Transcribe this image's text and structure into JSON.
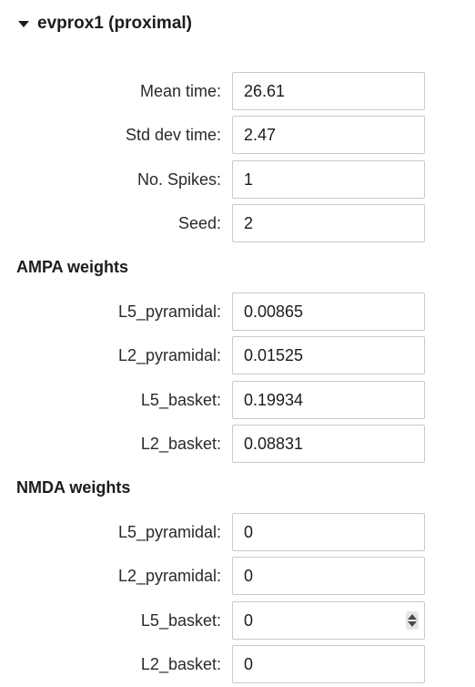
{
  "section": {
    "title": "evprox1 (proximal)",
    "expanded": true,
    "icon": "caret-down-icon"
  },
  "timing": [
    {
      "label": "Mean time:",
      "value": "26.61"
    },
    {
      "label": "Std dev time:",
      "value": "2.47"
    },
    {
      "label": "No. Spikes:",
      "value": "1"
    },
    {
      "label": "Seed:",
      "value": "2"
    }
  ],
  "ampa": {
    "heading": "AMPA weights",
    "fields": [
      {
        "label": "L5_pyramidal:",
        "value": "0.00865"
      },
      {
        "label": "L2_pyramidal:",
        "value": "0.01525"
      },
      {
        "label": "L5_basket:",
        "value": "0.19934"
      },
      {
        "label": "L2_basket:",
        "value": "0.08831"
      }
    ]
  },
  "nmda": {
    "heading": "NMDA weights",
    "fields": [
      {
        "label": "L5_pyramidal:",
        "value": "0"
      },
      {
        "label": "L2_pyramidal:",
        "value": "0"
      },
      {
        "label": "L5_basket:",
        "value": "0"
      },
      {
        "label": "L2_basket:",
        "value": "0"
      }
    ]
  },
  "spinner_icon": "spinner-arrows-icon",
  "colors": {
    "text": "#1c1c1c",
    "field_border": "#c9c9c9",
    "background": "#ffffff"
  }
}
